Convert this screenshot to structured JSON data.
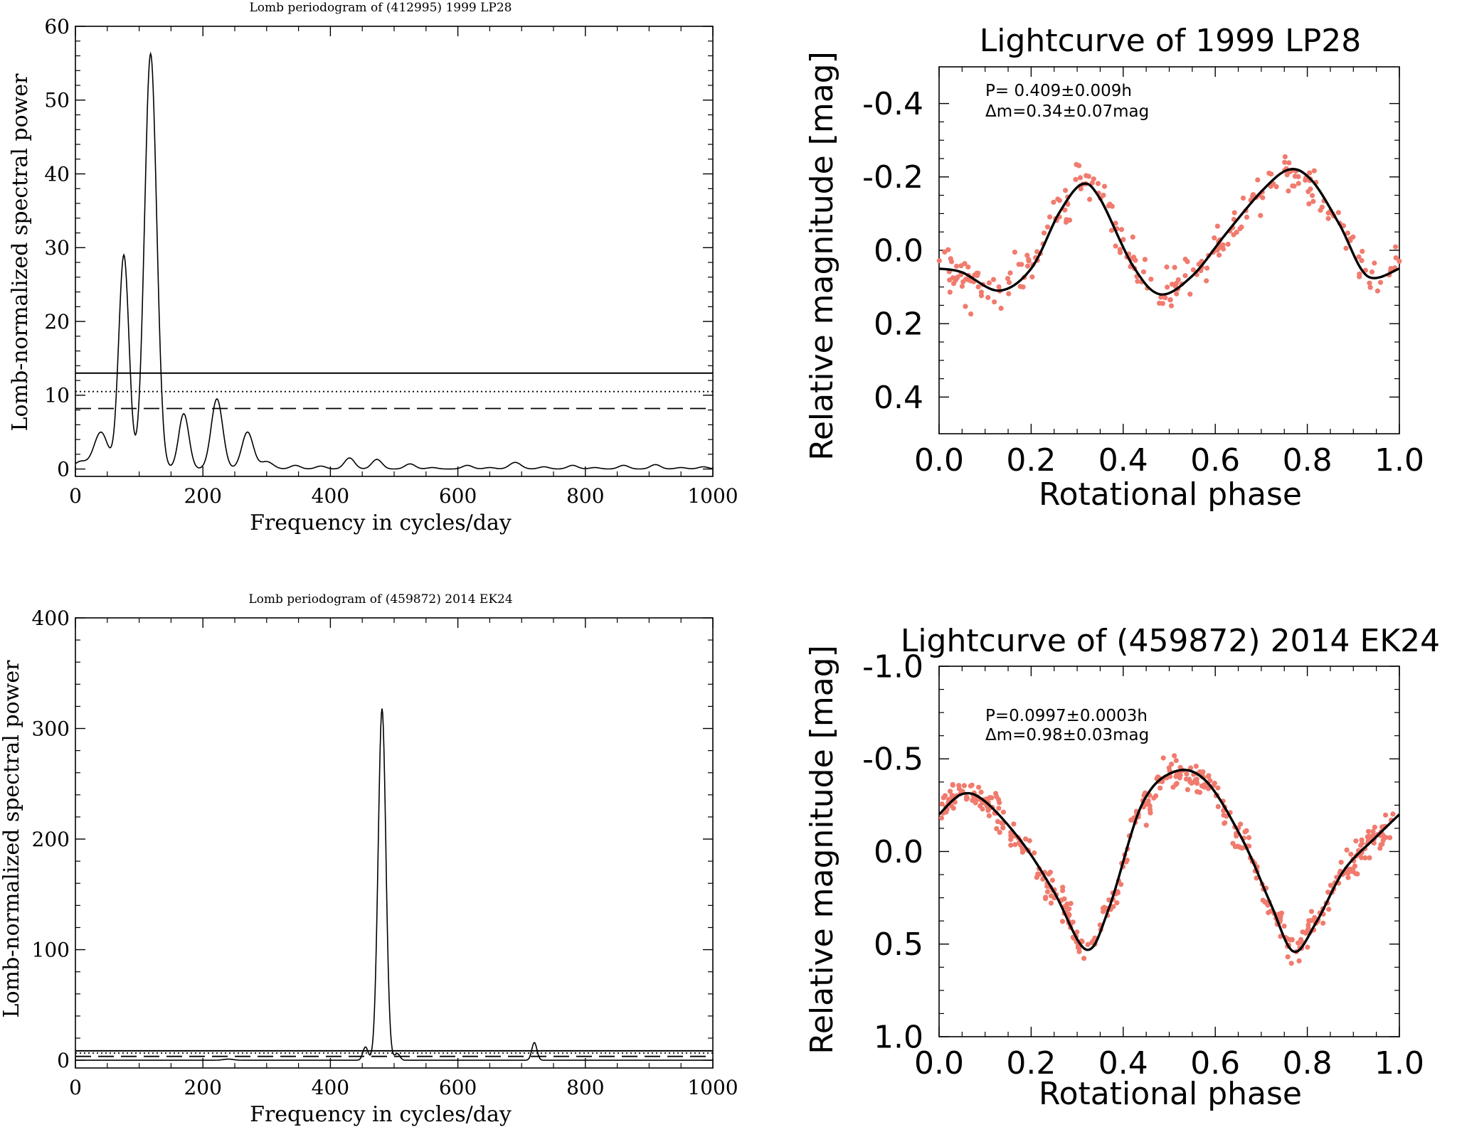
{
  "chart_data": [
    {
      "id": "p1",
      "type": "line",
      "title": "Lomb periodogram of (412995) 1999 LP28",
      "xlabel": "Frequency in cycles/day",
      "ylabel": "Lomb-normalized spectral power",
      "xlim": [
        0,
        1000
      ],
      "ylim": [
        -1,
        60
      ],
      "xticks": [
        0,
        200,
        400,
        600,
        800,
        1000
      ],
      "yticks": [
        0,
        10,
        20,
        30,
        40,
        50,
        60
      ],
      "thresholds": [
        {
          "style": "solid",
          "value": 13.0
        },
        {
          "style": "dotted",
          "value": 10.5
        },
        {
          "style": "dashed",
          "value": 8.2
        }
      ],
      "peaks": [
        {
          "f": 8,
          "p": 1.0,
          "w": 10
        },
        {
          "f": 40,
          "p": 5.0,
          "w": 11
        },
        {
          "f": 76,
          "p": 29.0,
          "w": 8
        },
        {
          "f": 118,
          "p": 56.3,
          "w": 9.5
        },
        {
          "f": 170,
          "p": 7.5,
          "w": 8
        },
        {
          "f": 222,
          "p": 9.5,
          "w": 9
        },
        {
          "f": 270,
          "p": 5.0,
          "w": 9
        },
        {
          "f": 300,
          "p": 1.0,
          "w": 10
        },
        {
          "f": 345,
          "p": 0.5,
          "w": 8
        },
        {
          "f": 385,
          "p": 0.4,
          "w": 8
        },
        {
          "f": 430,
          "p": 1.5,
          "w": 8
        },
        {
          "f": 473,
          "p": 1.3,
          "w": 8
        },
        {
          "f": 525,
          "p": 0.7,
          "w": 8
        },
        {
          "f": 560,
          "p": 0.2,
          "w": 8
        },
        {
          "f": 615,
          "p": 0.5,
          "w": 8
        },
        {
          "f": 650,
          "p": 0.2,
          "w": 8
        },
        {
          "f": 690,
          "p": 0.9,
          "w": 9
        },
        {
          "f": 735,
          "p": 0.3,
          "w": 8
        },
        {
          "f": 780,
          "p": 0.5,
          "w": 8
        },
        {
          "f": 815,
          "p": 0.2,
          "w": 8
        },
        {
          "f": 860,
          "p": 0.5,
          "w": 8
        },
        {
          "f": 910,
          "p": 0.6,
          "w": 8
        },
        {
          "f": 950,
          "p": 0.2,
          "w": 8
        },
        {
          "f": 985,
          "p": 0.3,
          "w": 8
        }
      ]
    },
    {
      "id": "p2",
      "type": "line",
      "title": "Lomb periodogram of (459872) 2014 EK24",
      "xlabel": "Frequency in cycles/day",
      "ylabel": "Lomb-normalized spectral power",
      "xlim": [
        0,
        1000
      ],
      "ylim": [
        -7,
        400
      ],
      "xticks": [
        0,
        200,
        400,
        600,
        800,
        1000
      ],
      "yticks": [
        0,
        100,
        200,
        300,
        400
      ],
      "thresholds": [
        {
          "style": "solid",
          "value": 8.5
        },
        {
          "style": "dotted",
          "value": 6.5
        },
        {
          "style": "dashed",
          "value": 3.5
        }
      ],
      "peaks": [
        {
          "f": 240,
          "p": 1.0,
          "w": 8
        },
        {
          "f": 455,
          "p": 12.0,
          "w": 4
        },
        {
          "f": 481,
          "p": 318.0,
          "w": 6
        },
        {
          "f": 505,
          "p": 6.0,
          "w": 4
        },
        {
          "f": 720,
          "p": 16.0,
          "w": 4
        }
      ]
    },
    {
      "id": "l1",
      "type": "scatter",
      "title": "Lightcurve of 1999 LP28",
      "xlabel": "Rotational phase",
      "ylabel": "Relative magnitude [mag]",
      "xlim": [
        0.0,
        1.0
      ],
      "ylim": [
        -0.5,
        0.5
      ],
      "yinverted": true,
      "xticks": [
        0.0,
        0.2,
        0.4,
        0.6,
        0.8,
        1.0
      ],
      "xticklabels": [
        "0.0",
        "0.2",
        "0.4",
        "0.6",
        "0.8",
        "1.0"
      ],
      "yticks": [
        -0.4,
        -0.2,
        0.0,
        0.2,
        0.4
      ],
      "yticklabels": [
        "-0.4",
        "-0.2",
        "0.0",
        "0.2",
        "0.4"
      ],
      "annotation": [
        "P= 0.409±0.009h",
        "Δm=0.34±0.07mag"
      ],
      "fit": [
        [
          0.0,
          0.05
        ],
        [
          0.05,
          0.06
        ],
        [
          0.13,
          0.11
        ],
        [
          0.2,
          0.05
        ],
        [
          0.26,
          -0.1
        ],
        [
          0.31,
          -0.18
        ],
        [
          0.35,
          -0.14
        ],
        [
          0.42,
          0.04
        ],
        [
          0.48,
          0.12
        ],
        [
          0.55,
          0.07
        ],
        [
          0.62,
          -0.04
        ],
        [
          0.7,
          -0.16
        ],
        [
          0.76,
          -0.22
        ],
        [
          0.81,
          -0.19
        ],
        [
          0.87,
          -0.07
        ],
        [
          0.93,
          0.07
        ],
        [
          1.0,
          0.05
        ]
      ],
      "noise": 0.03,
      "npoints": 260,
      "seed": 11,
      "point_color": "#f07b6e"
    },
    {
      "id": "l2",
      "type": "scatter",
      "title": "Lightcurve of (459872) 2014 EK24",
      "xlabel": "Rotational phase",
      "ylabel": "Relative magnitude [mag]",
      "xlim": [
        0.0,
        1.0
      ],
      "ylim": [
        -1.0,
        1.0
      ],
      "yinverted": true,
      "xticks": [
        0.0,
        0.2,
        0.4,
        0.6,
        0.8,
        1.0
      ],
      "xticklabels": [
        "0.0",
        "0.2",
        "0.4",
        "0.6",
        "0.8",
        "1.0"
      ],
      "yticks": [
        -1.0,
        -0.5,
        0.0,
        0.5,
        1.0
      ],
      "yticklabels": [
        "-1.0",
        "-0.5",
        "0.0",
        "0.5",
        "1.0"
      ],
      "annotation": [
        "P=0.0997±0.0003h",
        "Δm=0.98±0.03mag"
      ],
      "fit": [
        [
          0.0,
          -0.2
        ],
        [
          0.05,
          -0.31
        ],
        [
          0.1,
          -0.27
        ],
        [
          0.18,
          -0.05
        ],
        [
          0.25,
          0.22
        ],
        [
          0.32,
          0.53
        ],
        [
          0.37,
          0.3
        ],
        [
          0.44,
          -0.25
        ],
        [
          0.51,
          -0.43
        ],
        [
          0.58,
          -0.38
        ],
        [
          0.66,
          -0.06
        ],
        [
          0.72,
          0.28
        ],
        [
          0.77,
          0.54
        ],
        [
          0.82,
          0.38
        ],
        [
          0.88,
          0.1
        ],
        [
          0.95,
          -0.08
        ],
        [
          1.0,
          -0.2
        ]
      ],
      "noise": 0.04,
      "npoints": 460,
      "seed": 29,
      "point_color": "#f07b6e"
    }
  ]
}
